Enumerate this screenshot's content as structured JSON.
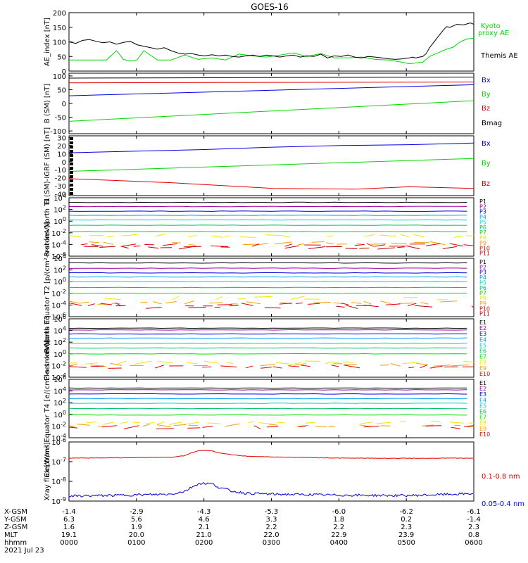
{
  "title": "GOES-16",
  "colors": {
    "black": "#000000",
    "blue": "#0000e0",
    "green": "#00d800",
    "red": "#e00000",
    "green_label": "#00e000",
    "ch": [
      "#000000",
      "#a000a0",
      "#0000e0",
      "#00a0f0",
      "#00d0d0",
      "#00c060",
      "#00e000",
      "#e8e800",
      "#f0a000",
      "#e00000",
      "#c00000"
    ]
  },
  "chart_data": [
    {
      "type": "line",
      "panel": "ae",
      "ylabel": "AE_index [nT]",
      "ylim": [
        0,
        200
      ],
      "yticks": [
        "0",
        "50",
        "100",
        "150",
        "200"
      ],
      "series": [
        {
          "name": "Kyoto proxy AE",
          "color": "green",
          "x": [
            0,
            20,
            35,
            55,
            70,
            80,
            90,
            100,
            110,
            130,
            150,
            170,
            190,
            210,
            230,
            250,
            270,
            290,
            310,
            330,
            350,
            370,
            390,
            410,
            430,
            450,
            470,
            490,
            500,
            510,
            520,
            530,
            540,
            555,
            565,
            575,
            585,
            595
          ],
          "y": [
            38,
            38,
            38,
            38,
            70,
            40,
            35,
            38,
            70,
            38,
            38,
            55,
            40,
            45,
            38,
            58,
            52,
            48,
            55,
            62,
            50,
            60,
            45,
            45,
            48,
            40,
            38,
            30,
            25,
            28,
            30,
            50,
            60,
            75,
            82,
            100,
            110,
            112
          ]
        },
        {
          "name": "Themis AE",
          "color": "black",
          "x": [
            0,
            10,
            20,
            30,
            40,
            50,
            60,
            70,
            80,
            90,
            100,
            110,
            120,
            130,
            140,
            150,
            160,
            170,
            180,
            190,
            200,
            210,
            220,
            230,
            240,
            250,
            260,
            270,
            280,
            290,
            300,
            310,
            320,
            330,
            340,
            350,
            360,
            370,
            380,
            390,
            400,
            410,
            420,
            430,
            440,
            450,
            460,
            470,
            480,
            490,
            500,
            505,
            510,
            515,
            520,
            525,
            530,
            535,
            540,
            545,
            550,
            555,
            560,
            565,
            570,
            580,
            590,
            595
          ],
          "y": [
            100,
            95,
            105,
            108,
            102,
            97,
            100,
            92,
            98,
            102,
            90,
            85,
            80,
            75,
            80,
            70,
            62,
            58,
            60,
            55,
            52,
            56,
            52,
            55,
            50,
            48,
            52,
            55,
            50,
            55,
            52,
            48,
            52,
            55,
            48,
            52,
            50,
            58,
            45,
            52,
            50,
            55,
            48,
            45,
            50,
            48,
            45,
            42,
            40,
            42,
            45,
            48,
            45,
            48,
            50,
            60,
            80,
            95,
            110,
            125,
            140,
            152,
            150,
            155,
            160,
            158,
            165,
            160
          ]
        }
      ]
    },
    {
      "type": "line",
      "panel": "b",
      "ylabel": "B (SM) [nT]",
      "ylim": [
        -110,
        110
      ],
      "yticks": [
        "-100",
        "-50",
        "0",
        "50",
        "100"
      ],
      "series": [
        {
          "name": "Bx",
          "color": "blue",
          "x": [
            0,
            595
          ],
          "y": [
            28,
            68
          ]
        },
        {
          "name": "By",
          "color": "green",
          "x": [
            0,
            595
          ],
          "y": [
            -65,
            10
          ]
        },
        {
          "name": "Bz",
          "color": "red",
          "x": [
            0,
            595
          ],
          "y": [
            75,
            78
          ]
        },
        {
          "name": "Bmag",
          "color": "black",
          "x": [
            0,
            595
          ],
          "y": [
            92,
            96
          ]
        }
      ]
    },
    {
      "type": "line",
      "panel": "bdiff",
      "ylabel": "B (SM)-IGRF (SM) [nT]",
      "ylim": [
        -42,
        32
      ],
      "yticks": [
        "-40",
        "-30",
        "-20",
        "-10",
        "0",
        "10",
        "20",
        "30"
      ],
      "series": [
        {
          "name": "Bx",
          "color": "blue",
          "x": [
            0,
            100,
            200,
            300,
            400,
            500,
            595
          ],
          "y": [
            11,
            13,
            15,
            18,
            20,
            21,
            23
          ]
        },
        {
          "name": "By",
          "color": "green",
          "x": [
            0,
            595
          ],
          "y": [
            -12,
            4
          ]
        },
        {
          "name": "Bz",
          "color": "red",
          "x": [
            0,
            150,
            300,
            420,
            500,
            595
          ],
          "y": [
            -21,
            -26,
            -33,
            -34,
            -31,
            -33
          ]
        }
      ]
    },
    {
      "type": "line",
      "panel": "protons_t1",
      "ylabel": "Protons North T1",
      "ylog": [
        -6,
        4
      ],
      "yticks": [
        "10^-6",
        "10^-4",
        "10^-2",
        "10^0",
        "10^2",
        "10^4"
      ],
      "channels": [
        "P1",
        "P2",
        "P3",
        "P4",
        "P5",
        "P6",
        "P7",
        "P8",
        "P9",
        "P10",
        "P11"
      ],
      "levels": [
        3.2,
        2.5,
        1.7,
        1.0,
        0.2,
        -0.7,
        -1.8,
        -2.5,
        -3.8,
        -4.1,
        -4.5
      ]
    },
    {
      "type": "line",
      "panel": "protons_t2",
      "ylabel": "Protons Equator T2 [p/(cm²-s-sr-keV)]",
      "ylog": [
        -6,
        4
      ],
      "yticks": [
        "10^-6",
        "10^-4",
        "10^-2",
        "10^0",
        "10^2",
        "10^4"
      ],
      "channels": [
        "P1",
        "P2",
        "P3",
        "P4",
        "P5",
        "P6",
        "P7",
        "P8",
        "P9",
        "P10",
        "P11"
      ],
      "levels": [
        3.2,
        2.3,
        1.5,
        0.8,
        0.0,
        -1.0,
        -2.0,
        -2.8,
        -3.6,
        -3.9,
        -4.3
      ]
    },
    {
      "type": "line",
      "panel": "electrons_t3",
      "ylabel": "Electrons North T3",
      "ylog": [
        -4,
        6
      ],
      "yticks": [
        "10^-4",
        "10^-2",
        "10^0",
        "10^2",
        "10^4",
        "10^6"
      ],
      "channels": [
        "E1",
        "E2",
        "E3",
        "E4",
        "E5",
        "E6",
        "E7",
        "E8",
        "E9",
        "E10"
      ],
      "levels": [
        4.4,
        4.1,
        3.4,
        2.7,
        1.8,
        1.0,
        0.0,
        -1.5,
        -1.9,
        -2.2
      ]
    },
    {
      "type": "line",
      "panel": "electrons_t4",
      "ylabel": "Electrons Equator T4 [e/(cm²-s-sr-keV)]",
      "ylog": [
        -4,
        6
      ],
      "yticks": [
        "10^-4",
        "10^-2",
        "10^0",
        "10^2",
        "10^4",
        "10^6"
      ],
      "channels": [
        "E1",
        "E2",
        "E3",
        "E4",
        "E5",
        "E6",
        "E7",
        "E8",
        "E9",
        "E10"
      ],
      "levels": [
        4.5,
        4.2,
        3.5,
        2.7,
        1.9,
        1.0,
        -0.1,
        -1.5,
        -1.9,
        -2.2
      ]
    },
    {
      "type": "line",
      "panel": "xray",
      "ylabel": "Xray flux [W/m²]",
      "ylog": [
        -9,
        -6
      ],
      "yticks": [
        "10^-9",
        "10^-8",
        "10^-7",
        "10^-6"
      ],
      "series": [
        {
          "name": "0.1-0.8 nm",
          "color": "red",
          "x": [
            0,
            80,
            150,
            170,
            180,
            190,
            200,
            210,
            220,
            240,
            260,
            300,
            400,
            500,
            595
          ],
          "y": [
            -6.82,
            -6.8,
            -6.78,
            -6.7,
            -6.55,
            -6.45,
            -6.43,
            -6.45,
            -6.55,
            -6.65,
            -6.72,
            -6.76,
            -6.82,
            -6.83,
            -6.82
          ]
        },
        {
          "name": "0.05-0.4 nm",
          "color": "blue",
          "x": [
            0,
            80,
            150,
            170,
            180,
            190,
            200,
            210,
            220,
            240,
            260,
            300,
            400,
            500,
            595
          ],
          "y": [
            -8.75,
            -8.7,
            -8.65,
            -8.5,
            -8.3,
            -8.12,
            -8.1,
            -8.12,
            -8.3,
            -8.5,
            -8.6,
            -8.65,
            -8.7,
            -8.72,
            -8.62
          ]
        }
      ]
    }
  ],
  "legend": {
    "ae": [
      "Kyoto",
      "proxy AE",
      "Themis AE"
    ],
    "b": [
      "Bx",
      "By",
      "Bz",
      "Bmag"
    ],
    "bdiff": [
      "Bx",
      "By",
      "Bz"
    ],
    "xray": [
      "0.1-0.8 nm",
      "0.05-0.4 nm"
    ]
  },
  "ephemeris": {
    "row_labels": [
      "X-GSM",
      "Y-GSM",
      "Z-GSM",
      "MLT",
      "hhmm",
      "2021 Jul 23"
    ],
    "columns": [
      [
        "-1.4",
        "6.3",
        "1.6",
        "19.1",
        "0000"
      ],
      [
        "-2.9",
        "5.6",
        "1.9",
        "20.0",
        "0100"
      ],
      [
        "-4.3",
        "4.6",
        "2.1",
        "21.0",
        "0200"
      ],
      [
        "-5.3",
        "3.3",
        "2.2",
        "22.0",
        "0300"
      ],
      [
        "-6.0",
        "1.8",
        "2.2",
        "22.9",
        "0400"
      ],
      [
        "-6.2",
        "0.2",
        "2.3",
        "23.9",
        "0500"
      ],
      [
        "-6.1",
        "-1.4",
        "2.3",
        "0.8",
        "0600"
      ]
    ]
  }
}
